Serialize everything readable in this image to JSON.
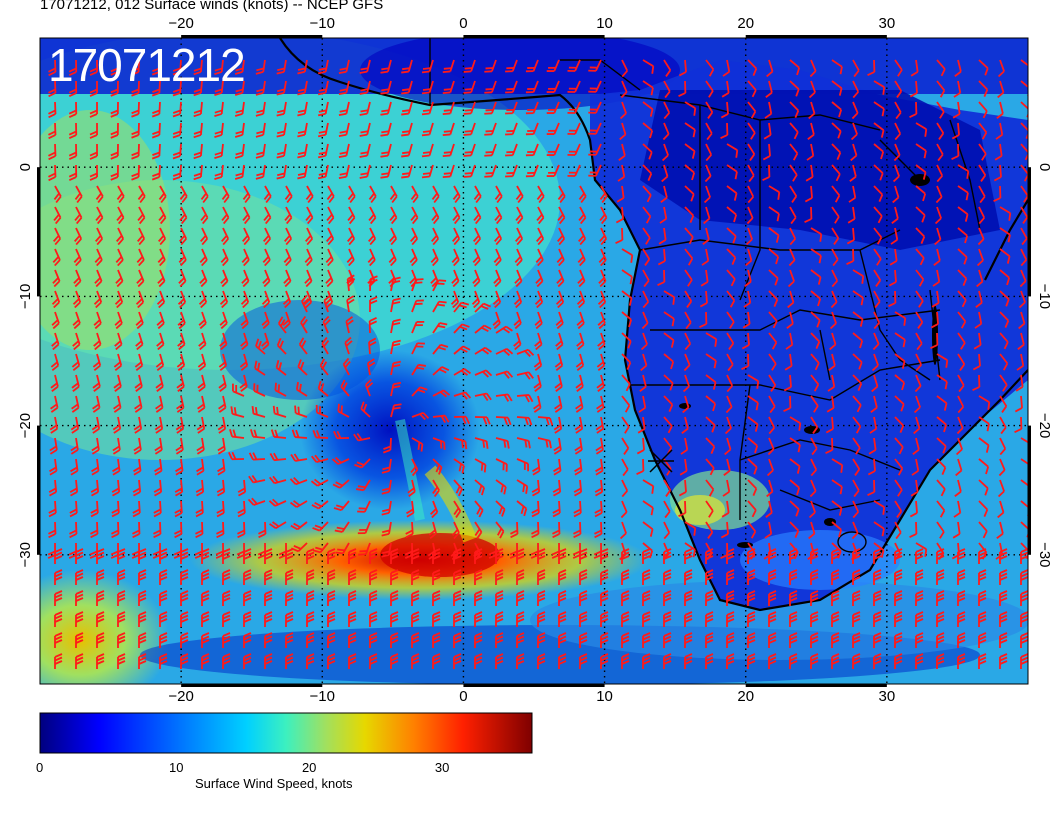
{
  "header": {
    "title": "17071212, 012 Surface winds (knots) -- NCEP GFS",
    "stamp": "17071212"
  },
  "map": {
    "lon_range": [
      -30,
      40
    ],
    "lat_range": [
      -40,
      10
    ],
    "lon_ticks": [
      "−20",
      "−10",
      "0",
      "10",
      "20",
      "30"
    ],
    "lat_ticks": [
      "0",
      "−10",
      "−20",
      "−30"
    ],
    "barb_color": "#ff1a1a",
    "coast_color": "#000000"
  },
  "colorbar": {
    "title": "Surface Wind Speed, knots",
    "ticks": [
      "0",
      "10",
      "20",
      "30"
    ],
    "min": 0,
    "max": 37,
    "colors": [
      "#00007f",
      "#0000ff",
      "#007fff",
      "#00d0ff",
      "#3cf0c0",
      "#a0e060",
      "#e6d800",
      "#ff8000",
      "#ff2000",
      "#7f0000"
    ]
  }
}
